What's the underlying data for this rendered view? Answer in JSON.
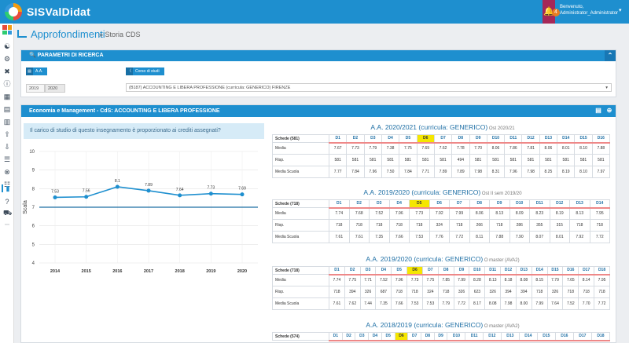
{
  "topbar": {
    "brand": "SISValDidat",
    "notification_count": "4",
    "welcome": "Benvenuto,",
    "user": "Administrator_Administrator"
  },
  "page": {
    "title": "Approfondimenti",
    "subtitle": "Storia CDS"
  },
  "filters": {
    "panel_title": "PARAMETRI DI RICERCA",
    "aa_label": "A.A.",
    "aa_from": "2019",
    "aa_to": "2020",
    "course_label": "Corso di studi",
    "course_value": "(B187) ACCOUNTING E LIBERA PROFESSIONE (curricula: GENERICO) FIRENZE"
  },
  "results": {
    "panel_title": "Economia e Management - CdS: ACCOUNTING E LIBERA PROFESSIONE",
    "question": "Il carico di studio di questo insegnamento è proporzionato ai crediti assegnati?"
  },
  "chart_data": {
    "type": "line",
    "x": [
      "2014",
      "2015",
      "2016",
      "2017",
      "2018",
      "2019",
      "2020"
    ],
    "series": [
      {
        "values": [
          7.53,
          7.56,
          8.1,
          7.89,
          7.64,
          7.73,
          7.69
        ]
      }
    ],
    "data_labels": [
      "7.53",
      "7.56",
      "8.1",
      "7.89",
      "7.64",
      "7.73",
      "7.69"
    ],
    "ylabel": "Scala",
    "ylim": [
      4,
      10
    ],
    "yticks": [
      "4",
      "5",
      "6",
      "7",
      "8",
      "9",
      "10"
    ],
    "reference_line": 7,
    "grid": true,
    "series_color": "#1e8fcf"
  },
  "tables": [
    {
      "title": "A.A. 2020/2021 (curricula: GENERICO)",
      "note": "Ost 2020/21",
      "schede": "Schede (581)",
      "highlight": 5,
      "cols": [
        "D1",
        "D2",
        "D3",
        "D4",
        "D5",
        "D6",
        "D7",
        "D8",
        "D9",
        "D10",
        "D11",
        "D12",
        "D13",
        "D14",
        "D15",
        "D16"
      ],
      "rows": [
        {
          "label": "Media",
          "values": [
            "7.67",
            "7.73",
            "7.79",
            "7.38",
            "7.75",
            "7.69",
            "7.62",
            "7.78",
            "7.70",
            "8.06",
            "7.86",
            "7.81",
            "8.06",
            "8.01",
            "8.10",
            "7.88"
          ]
        },
        {
          "label": "Risp.",
          "values": [
            "581",
            "581",
            "581",
            "581",
            "581",
            "581",
            "581",
            "494",
            "581",
            "581",
            "581",
            "581",
            "581",
            "581",
            "581",
            "581"
          ]
        },
        {
          "label": "Media Scuola",
          "values": [
            "7.77",
            "7.84",
            "7.96",
            "7.50",
            "7.84",
            "7.71",
            "7.89",
            "7.89",
            "7.98",
            "8.31",
            "7.96",
            "7.98",
            "8.25",
            "8.19",
            "8.10",
            "7.97"
          ]
        }
      ]
    },
    {
      "title": "A.A. 2019/2020 (curricula: GENERICO)",
      "note": "Ost II sem 2019/20",
      "schede": "Schede (718)",
      "highlight": 4,
      "cols": [
        "D1",
        "D2",
        "D3",
        "D4",
        "D5",
        "D6",
        "D7",
        "D8",
        "D9",
        "D10",
        "D11",
        "D12",
        "D13",
        "D14"
      ],
      "rows": [
        {
          "label": "Media",
          "values": [
            "7.74",
            "7.68",
            "7.52",
            "7.96",
            "7.73",
            "7.92",
            "7.99",
            "8.06",
            "8.13",
            "8.09",
            "8.23",
            "8.19",
            "8.13",
            "7.95"
          ]
        },
        {
          "label": "Risp.",
          "values": [
            "718",
            "718",
            "718",
            "718",
            "718",
            "324",
            "718",
            "266",
            "718",
            "286",
            "355",
            "315",
            "718",
            "718"
          ]
        },
        {
          "label": "Media Scuola",
          "values": [
            "7.61",
            "7.61",
            "7.35",
            "7.66",
            "7.53",
            "7.76",
            "7.72",
            "8.11",
            "7.88",
            "7.90",
            "8.07",
            "8.01",
            "7.92",
            "7.72"
          ]
        }
      ]
    },
    {
      "title": "A.A. 2019/2020 (curricula: GENERICO)",
      "note": "O master (AVA2)",
      "schede": "Schede (718)",
      "highlight": 5,
      "cols": [
        "D1",
        "D2",
        "D3",
        "D4",
        "D5",
        "D6",
        "D7",
        "D8",
        "D9",
        "D10",
        "D11",
        "D12",
        "D13",
        "D14",
        "D15",
        "D16",
        "D17",
        "D18"
      ],
      "rows": [
        {
          "label": "Media",
          "values": [
            "7.74",
            "7.75",
            "7.71",
            "7.52",
            "7.96",
            "7.73",
            "7.75",
            "7.85",
            "7.99",
            "8.28",
            "8.13",
            "8.18",
            "8.08",
            "8.15",
            "7.79",
            "7.65",
            "8.14",
            "7.95"
          ]
        },
        {
          "label": "Risp.",
          "values": [
            "718",
            "394",
            "326",
            "687",
            "718",
            "718",
            "324",
            "718",
            "326",
            "623",
            "326",
            "394",
            "394",
            "718",
            "326",
            "718",
            "718",
            "718"
          ]
        },
        {
          "label": "Media Scuola",
          "values": [
            "7.61",
            "7.62",
            "7.44",
            "7.35",
            "7.66",
            "7.53",
            "7.53",
            "7.79",
            "7.72",
            "8.17",
            "8.08",
            "7.98",
            "8.00",
            "7.99",
            "7.64",
            "7.52",
            "7.70",
            "7.72"
          ]
        }
      ]
    },
    {
      "title": "A.A. 2018/2019 (curricula: GENERICO)",
      "note": "O master (AVA2)",
      "schede": "Schede (574)",
      "highlight": 5,
      "cols": [
        "D1",
        "D2",
        "D3",
        "D4",
        "D5",
        "D6",
        "D7",
        "D8",
        "D9",
        "D10",
        "D11",
        "D12",
        "D13",
        "D14",
        "D15",
        "D16",
        "D17",
        "D18"
      ],
      "rows": []
    }
  ]
}
